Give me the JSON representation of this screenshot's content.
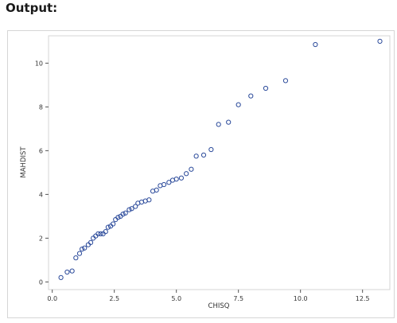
{
  "heading": "Output:",
  "chart_data": {
    "type": "scatter",
    "title": "",
    "xlabel": "CHISQ",
    "ylabel": "MAHDIST",
    "xlim": [
      -0.15,
      13.6
    ],
    "ylim": [
      -0.35,
      11.25
    ],
    "xticks": [
      0.0,
      2.5,
      5.0,
      7.5,
      10.0,
      12.5
    ],
    "xtick_labels": [
      "0.0",
      "2.5",
      "5.0",
      "7.5",
      "10.0",
      "12.5"
    ],
    "yticks": [
      0,
      2,
      4,
      6,
      8,
      10
    ],
    "ytick_labels": [
      "0",
      "2",
      "4",
      "6",
      "8",
      "10"
    ],
    "grid": false,
    "marker": "open-circle",
    "marker_color": "#2c4b9b",
    "series": [
      {
        "x": [
          0.35,
          0.6,
          0.8,
          0.95,
          1.1,
          1.2,
          1.3,
          1.45,
          1.55,
          1.65,
          1.75,
          1.85,
          1.95,
          2.05,
          2.15,
          2.25,
          2.35,
          2.45,
          2.55,
          2.65,
          2.75,
          2.85,
          2.95,
          3.1,
          3.2,
          3.35,
          3.45,
          3.6,
          3.75,
          3.9,
          4.05,
          4.2,
          4.35,
          4.5,
          4.7,
          4.85,
          5.0,
          5.2,
          5.4,
          5.6,
          5.8,
          6.1,
          6.4,
          6.7,
          7.1,
          7.5,
          8.0,
          8.6,
          9.4,
          10.6,
          13.2
        ],
        "y": [
          0.2,
          0.45,
          0.5,
          1.1,
          1.3,
          1.5,
          1.55,
          1.7,
          1.8,
          2.0,
          2.1,
          2.2,
          2.2,
          2.2,
          2.3,
          2.5,
          2.55,
          2.65,
          2.85,
          2.95,
          3.0,
          3.1,
          3.15,
          3.3,
          3.35,
          3.45,
          3.6,
          3.65,
          3.7,
          3.75,
          4.15,
          4.2,
          4.4,
          4.45,
          4.55,
          4.65,
          4.7,
          4.75,
          4.95,
          5.15,
          5.75,
          5.8,
          6.05,
          7.2,
          7.3,
          8.1,
          8.5,
          8.85,
          9.2,
          10.85,
          11.0
        ]
      }
    ]
  }
}
